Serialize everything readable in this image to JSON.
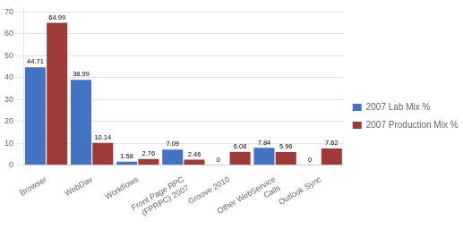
{
  "chart_data": {
    "type": "bar",
    "categories": [
      "Browser",
      "WebDav",
      "Workflows",
      "Front Page RPC\n(FPRPC) 2007",
      "Groove 2010",
      "Other WebService\nCalls",
      "Outlook Sync"
    ],
    "series": [
      {
        "name": "2007 Lab Mix %",
        "color": "#4472C4",
        "values": [
          44.71,
          38.99,
          1.58,
          7.09,
          0,
          7.84,
          0
        ]
      },
      {
        "name": "2007 Production Mix %",
        "color": "#9E3A38",
        "values": [
          64.99,
          10.14,
          2.76,
          2.46,
          6.08,
          5.96,
          7.62
        ]
      }
    ],
    "ylim": [
      0,
      72
    ],
    "yticks": [
      0,
      10,
      20,
      30,
      40,
      50,
      60,
      70
    ],
    "grid": true,
    "legend": "right",
    "data_labels": true
  }
}
